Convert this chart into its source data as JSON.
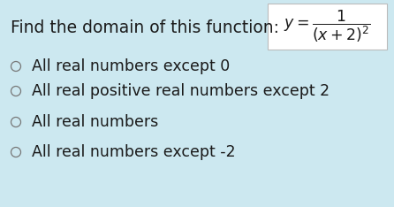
{
  "background_color": "#cce8f0",
  "question_text": "Find the domain of this function:",
  "formula_str": "$y=\\dfrac{1}{(x+2)^{2}}$",
  "options": [
    "All real numbers except 0",
    "All real positive real numbers except 2",
    "All real numbers",
    "All real numbers except -2"
  ],
  "question_fontsize": 13.5,
  "option_fontsize": 12.5,
  "text_color": "#1a1a1a",
  "circle_color": "#777777",
  "fig_width": 4.46,
  "fig_height": 2.34,
  "dpi": 100
}
